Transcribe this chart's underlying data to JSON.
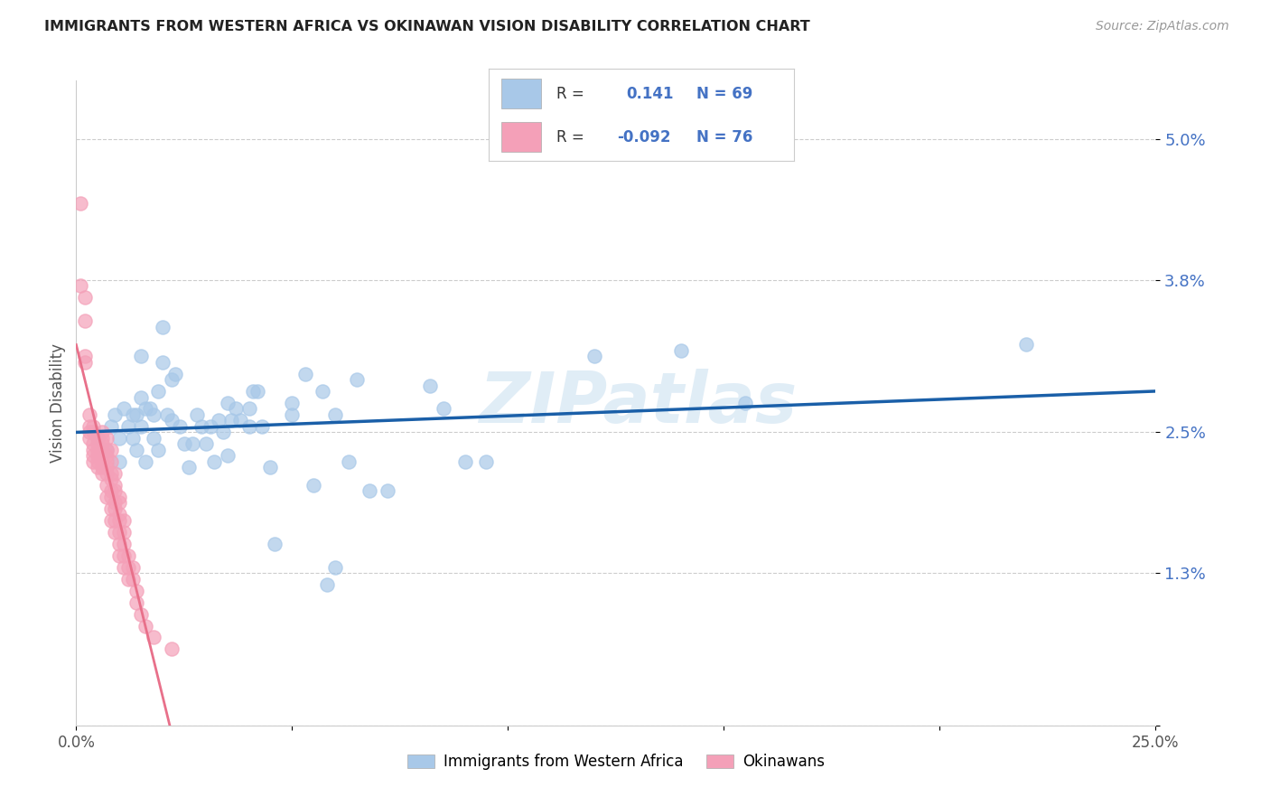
{
  "title": "IMMIGRANTS FROM WESTERN AFRICA VS OKINAWAN VISION DISABILITY CORRELATION CHART",
  "source": "Source: ZipAtlas.com",
  "ylabel": "Vision Disability",
  "ytick_vals": [
    0.0,
    0.013,
    0.025,
    0.038,
    0.05
  ],
  "ytick_labels": [
    "",
    "1.3%",
    "2.5%",
    "3.8%",
    "5.0%"
  ],
  "xtick_vals": [
    0.0,
    0.05,
    0.1,
    0.15,
    0.2,
    0.25
  ],
  "xtick_labels": [
    "0.0%",
    "",
    "",
    "",
    "",
    "25.0%"
  ],
  "xlim": [
    0.0,
    0.25
  ],
  "ylim": [
    0.0,
    0.055
  ],
  "watermark": "ZIPatlas",
  "blue_color": "#a8c8e8",
  "pink_color": "#f4a0b8",
  "blue_line_color": "#1a5fa8",
  "pink_line_color": "#e8708a",
  "pink_line_dash": "#e8a0b8",
  "blue_scatter": [
    [
      0.005,
      0.0245
    ],
    [
      0.007,
      0.0235
    ],
    [
      0.008,
      0.0255
    ],
    [
      0.009,
      0.0265
    ],
    [
      0.01,
      0.0245
    ],
    [
      0.01,
      0.0225
    ],
    [
      0.011,
      0.027
    ],
    [
      0.012,
      0.0255
    ],
    [
      0.013,
      0.0245
    ],
    [
      0.013,
      0.0265
    ],
    [
      0.014,
      0.0265
    ],
    [
      0.014,
      0.0235
    ],
    [
      0.015,
      0.028
    ],
    [
      0.015,
      0.0255
    ],
    [
      0.015,
      0.0315
    ],
    [
      0.016,
      0.027
    ],
    [
      0.016,
      0.0225
    ],
    [
      0.017,
      0.027
    ],
    [
      0.018,
      0.0265
    ],
    [
      0.018,
      0.0245
    ],
    [
      0.019,
      0.0235
    ],
    [
      0.019,
      0.0285
    ],
    [
      0.02,
      0.034
    ],
    [
      0.02,
      0.031
    ],
    [
      0.021,
      0.0265
    ],
    [
      0.022,
      0.0295
    ],
    [
      0.022,
      0.026
    ],
    [
      0.023,
      0.03
    ],
    [
      0.024,
      0.0255
    ],
    [
      0.025,
      0.024
    ],
    [
      0.026,
      0.022
    ],
    [
      0.027,
      0.024
    ],
    [
      0.028,
      0.0265
    ],
    [
      0.029,
      0.0255
    ],
    [
      0.03,
      0.024
    ],
    [
      0.031,
      0.0255
    ],
    [
      0.032,
      0.0225
    ],
    [
      0.033,
      0.026
    ],
    [
      0.034,
      0.025
    ],
    [
      0.035,
      0.023
    ],
    [
      0.035,
      0.0275
    ],
    [
      0.036,
      0.026
    ],
    [
      0.037,
      0.027
    ],
    [
      0.038,
      0.026
    ],
    [
      0.04,
      0.027
    ],
    [
      0.04,
      0.0255
    ],
    [
      0.041,
      0.0285
    ],
    [
      0.042,
      0.0285
    ],
    [
      0.043,
      0.0255
    ],
    [
      0.045,
      0.022
    ],
    [
      0.046,
      0.0155
    ],
    [
      0.05,
      0.0275
    ],
    [
      0.05,
      0.0265
    ],
    [
      0.053,
      0.03
    ],
    [
      0.055,
      0.0205
    ],
    [
      0.057,
      0.0285
    ],
    [
      0.06,
      0.0265
    ],
    [
      0.063,
      0.0225
    ],
    [
      0.065,
      0.0295
    ],
    [
      0.068,
      0.02
    ],
    [
      0.072,
      0.02
    ],
    [
      0.082,
      0.029
    ],
    [
      0.085,
      0.027
    ],
    [
      0.09,
      0.0225
    ],
    [
      0.095,
      0.0225
    ],
    [
      0.12,
      0.0315
    ],
    [
      0.14,
      0.032
    ],
    [
      0.22,
      0.0325
    ],
    [
      0.06,
      0.0135
    ],
    [
      0.058,
      0.012
    ],
    [
      0.155,
      0.0275
    ]
  ],
  "pink_scatter": [
    [
      0.001,
      0.0445
    ],
    [
      0.001,
      0.0375
    ],
    [
      0.002,
      0.0365
    ],
    [
      0.002,
      0.0345
    ],
    [
      0.002,
      0.0315
    ],
    [
      0.002,
      0.031
    ],
    [
      0.003,
      0.0265
    ],
    [
      0.003,
      0.0255
    ],
    [
      0.003,
      0.025
    ],
    [
      0.003,
      0.0245
    ],
    [
      0.004,
      0.0255
    ],
    [
      0.004,
      0.025
    ],
    [
      0.004,
      0.024
    ],
    [
      0.004,
      0.0235
    ],
    [
      0.004,
      0.023
    ],
    [
      0.004,
      0.0225
    ],
    [
      0.005,
      0.0245
    ],
    [
      0.005,
      0.024
    ],
    [
      0.005,
      0.023
    ],
    [
      0.005,
      0.0225
    ],
    [
      0.005,
      0.0235
    ],
    [
      0.005,
      0.022
    ],
    [
      0.006,
      0.025
    ],
    [
      0.006,
      0.0245
    ],
    [
      0.006,
      0.024
    ],
    [
      0.006,
      0.0235
    ],
    [
      0.006,
      0.023
    ],
    [
      0.006,
      0.0225
    ],
    [
      0.006,
      0.022
    ],
    [
      0.006,
      0.0215
    ],
    [
      0.007,
      0.0245
    ],
    [
      0.007,
      0.0235
    ],
    [
      0.007,
      0.023
    ],
    [
      0.007,
      0.0225
    ],
    [
      0.007,
      0.022
    ],
    [
      0.007,
      0.0215
    ],
    [
      0.007,
      0.0205
    ],
    [
      0.007,
      0.0195
    ],
    [
      0.008,
      0.0235
    ],
    [
      0.008,
      0.0225
    ],
    [
      0.008,
      0.0215
    ],
    [
      0.008,
      0.021
    ],
    [
      0.008,
      0.02
    ],
    [
      0.008,
      0.0195
    ],
    [
      0.008,
      0.0185
    ],
    [
      0.008,
      0.0175
    ],
    [
      0.009,
      0.0215
    ],
    [
      0.009,
      0.0205
    ],
    [
      0.009,
      0.02
    ],
    [
      0.009,
      0.019
    ],
    [
      0.009,
      0.0185
    ],
    [
      0.009,
      0.0175
    ],
    [
      0.009,
      0.0165
    ],
    [
      0.01,
      0.0195
    ],
    [
      0.01,
      0.019
    ],
    [
      0.01,
      0.018
    ],
    [
      0.01,
      0.0175
    ],
    [
      0.01,
      0.0165
    ],
    [
      0.01,
      0.0155
    ],
    [
      0.01,
      0.0145
    ],
    [
      0.011,
      0.0175
    ],
    [
      0.011,
      0.0165
    ],
    [
      0.011,
      0.0155
    ],
    [
      0.011,
      0.0145
    ],
    [
      0.011,
      0.0135
    ],
    [
      0.012,
      0.0145
    ],
    [
      0.012,
      0.0135
    ],
    [
      0.012,
      0.0125
    ],
    [
      0.013,
      0.0135
    ],
    [
      0.013,
      0.0125
    ],
    [
      0.014,
      0.0115
    ],
    [
      0.014,
      0.0105
    ],
    [
      0.015,
      0.0095
    ],
    [
      0.016,
      0.0085
    ],
    [
      0.018,
      0.0075
    ],
    [
      0.022,
      0.0065
    ]
  ]
}
